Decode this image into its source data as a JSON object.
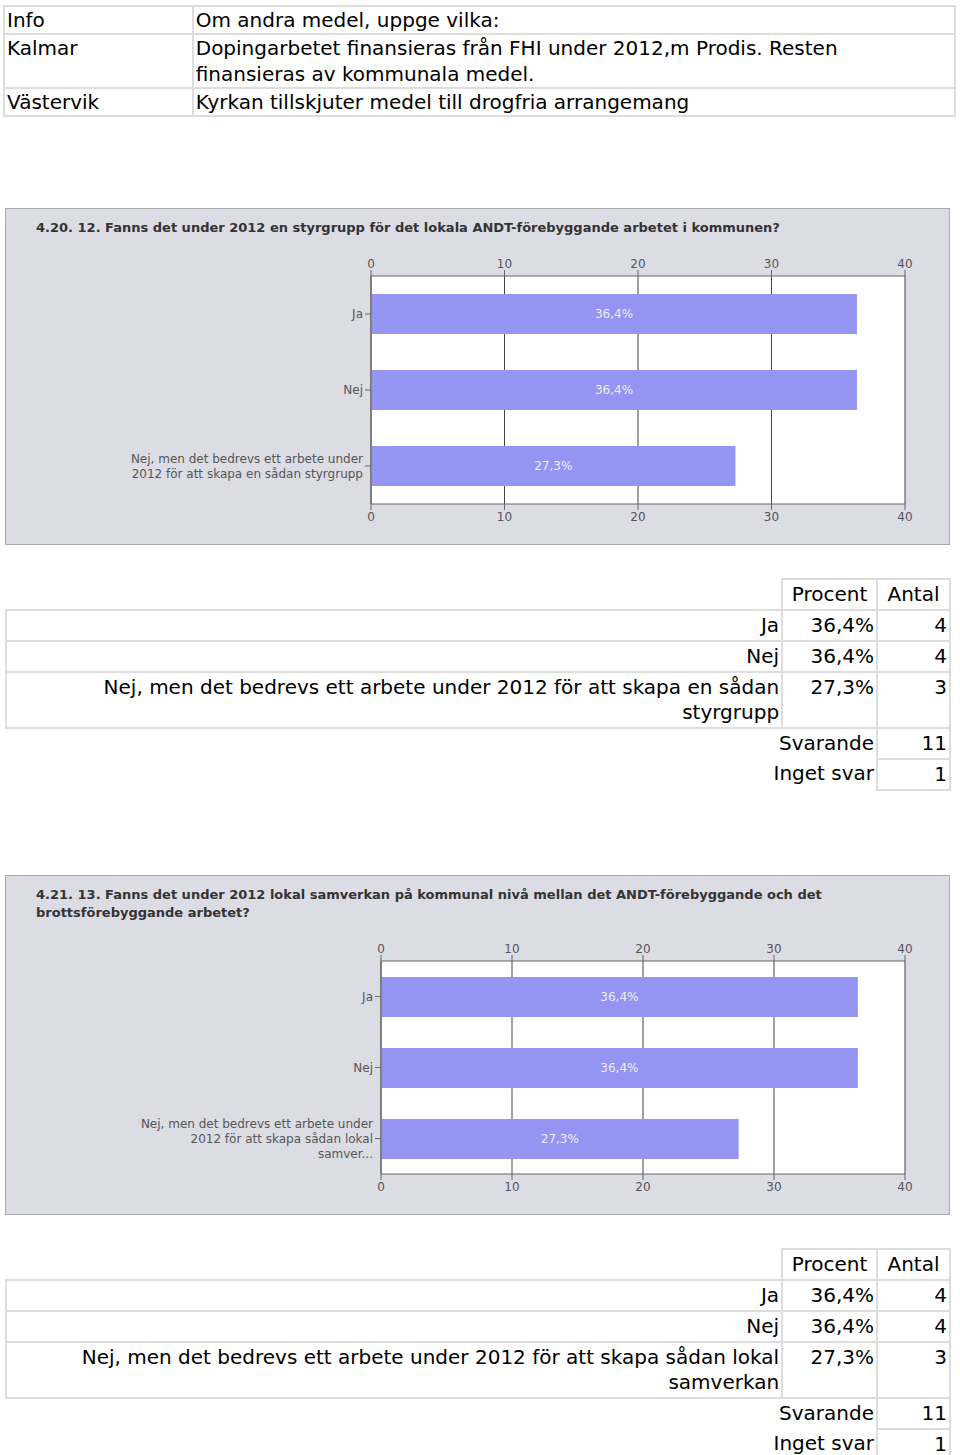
{
  "info_table": {
    "header": [
      "Info",
      "Om andra medel, uppge vilka:"
    ],
    "rows": [
      [
        "Kalmar",
        "Dopingarbetet finansieras från FHI under 2012,m Prodis. Resten finansieras av kommunala medel."
      ],
      [
        "Västervik",
        "Kyrkan tillskjuter medel till drogfria arrangemang"
      ]
    ]
  },
  "chart_data": [
    {
      "type": "bar",
      "title": "4.20. 12. Fanns det under 2012 en styrgrupp för det lokala ANDT-förebyggande arbetet i kommunen?",
      "orientation": "horizontal",
      "categories": [
        "Ja",
        "Nej",
        "Nej, men det bedrevs ett arbete under 2012 för att skapa en sådan styrgrupp"
      ],
      "values": [
        36.4,
        36.4,
        27.3
      ],
      "value_labels": [
        "36,4%",
        "36,4%",
        "27,3%"
      ],
      "data_labels": true,
      "color": "#9494f2",
      "xlim": [
        0,
        40
      ],
      "xticks": [
        0,
        10,
        20,
        30,
        40
      ],
      "grid": true
    },
    {
      "type": "bar",
      "title": "4.21. 13. Fanns det under 2012 lokal samverkan på kommunal nivå mellan det ANDT-förebyggande och det brottsförebyggande arbetet?",
      "orientation": "horizontal",
      "categories": [
        "Ja",
        "Nej",
        "Nej, men det bedrevs ett arbete under 2012 för att skapa sådan lokal samver..."
      ],
      "values": [
        36.4,
        36.4,
        27.3
      ],
      "value_labels": [
        "36,4%",
        "36,4%",
        "27,3%"
      ],
      "data_labels": true,
      "color": "#9494f2",
      "xlim": [
        0,
        40
      ],
      "xticks": [
        0,
        10,
        20,
        30,
        40
      ],
      "grid": true
    }
  ],
  "result_tables": [
    {
      "header": [
        "Procent",
        "Antal"
      ],
      "rows": [
        [
          "Ja",
          "36,4%",
          4
        ],
        [
          "Nej",
          "36,4%",
          4
        ],
        [
          "Nej, men det bedrevs ett arbete under 2012 för att skapa en sådan styrgrupp",
          "27,3%",
          3
        ]
      ],
      "totals": [
        [
          "Svarande",
          11
        ],
        [
          "Inget svar",
          1
        ]
      ]
    },
    {
      "header": [
        "Procent",
        "Antal"
      ],
      "rows": [
        [
          "Ja",
          "36,4%",
          4
        ],
        [
          "Nej",
          "36,4%",
          4
        ],
        [
          "Nej, men det bedrevs ett arbete under 2012 för att skapa sådan lokal samverkan",
          "27,3%",
          3
        ]
      ],
      "totals": [
        [
          "Svarande",
          11
        ],
        [
          "Inget svar",
          1
        ]
      ]
    }
  ]
}
